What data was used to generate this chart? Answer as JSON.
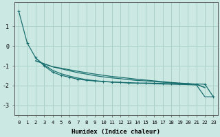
{
  "xlabel": "Humidex (Indice chaleur)",
  "xlim": [
    -0.5,
    23.5
  ],
  "ylim": [
    -3.5,
    2.2
  ],
  "yticks": [
    -3,
    -2,
    -1,
    0,
    1
  ],
  "xticks": [
    0,
    1,
    2,
    3,
    4,
    5,
    6,
    7,
    8,
    9,
    10,
    11,
    12,
    13,
    14,
    15,
    16,
    17,
    18,
    19,
    20,
    21,
    22,
    23
  ],
  "bg_color": "#cce8e2",
  "line_color": "#1a7070",
  "grid_color": "#aad0c8",
  "curve1_x": [
    0,
    1,
    2,
    3,
    4,
    5,
    6,
    7,
    8,
    9,
    10,
    11,
    12,
    13,
    14,
    15,
    16,
    17,
    18,
    19,
    20,
    21,
    22,
    23
  ],
  "curve1_y": [
    1.75,
    0.15,
    -0.6,
    -1.0,
    -1.32,
    -1.48,
    -1.58,
    -1.68,
    -1.73,
    -1.77,
    -1.8,
    -1.82,
    -1.84,
    -1.85,
    -1.87,
    -1.87,
    -1.88,
    -1.89,
    -1.9,
    -1.91,
    -1.91,
    -1.92,
    -1.93,
    -2.57
  ],
  "curve2_x": [
    2,
    3,
    4,
    5,
    6,
    7,
    8,
    9,
    10,
    11,
    12,
    13,
    14,
    15,
    16,
    17,
    18,
    19,
    20,
    21,
    22,
    23
  ],
  "curve2_y": [
    -0.62,
    -0.95,
    -1.23,
    -1.4,
    -1.52,
    -1.62,
    -1.7,
    -1.75,
    -1.79,
    -1.82,
    -1.84,
    -1.87,
    -1.88,
    -1.89,
    -1.91,
    -1.92,
    -1.93,
    -1.94,
    -1.95,
    -1.97,
    -2.57,
    -2.57
  ],
  "curve3_x": [
    2,
    3,
    4,
    5,
    6,
    7,
    8,
    9,
    10,
    11,
    12,
    13,
    14,
    15,
    16,
    17,
    18,
    19,
    20,
    21,
    22
  ],
  "curve3_y": [
    -0.75,
    -0.9,
    -1.05,
    -1.15,
    -1.25,
    -1.35,
    -1.42,
    -1.5,
    -1.56,
    -1.61,
    -1.65,
    -1.7,
    -1.74,
    -1.76,
    -1.8,
    -1.83,
    -1.86,
    -1.89,
    -1.91,
    -1.94,
    -2.1
  ],
  "curve4_x": [
    2,
    3,
    4,
    5,
    6,
    7,
    8,
    9,
    10,
    11,
    12,
    13,
    14,
    15,
    16,
    17,
    18,
    19,
    20,
    21,
    22
  ],
  "curve4_y": [
    -0.75,
    -0.9,
    -1.05,
    -1.12,
    -1.2,
    -1.28,
    -1.35,
    -1.42,
    -1.48,
    -1.54,
    -1.58,
    -1.63,
    -1.68,
    -1.72,
    -1.76,
    -1.8,
    -1.84,
    -1.87,
    -1.9,
    -1.93,
    -2.1
  ]
}
